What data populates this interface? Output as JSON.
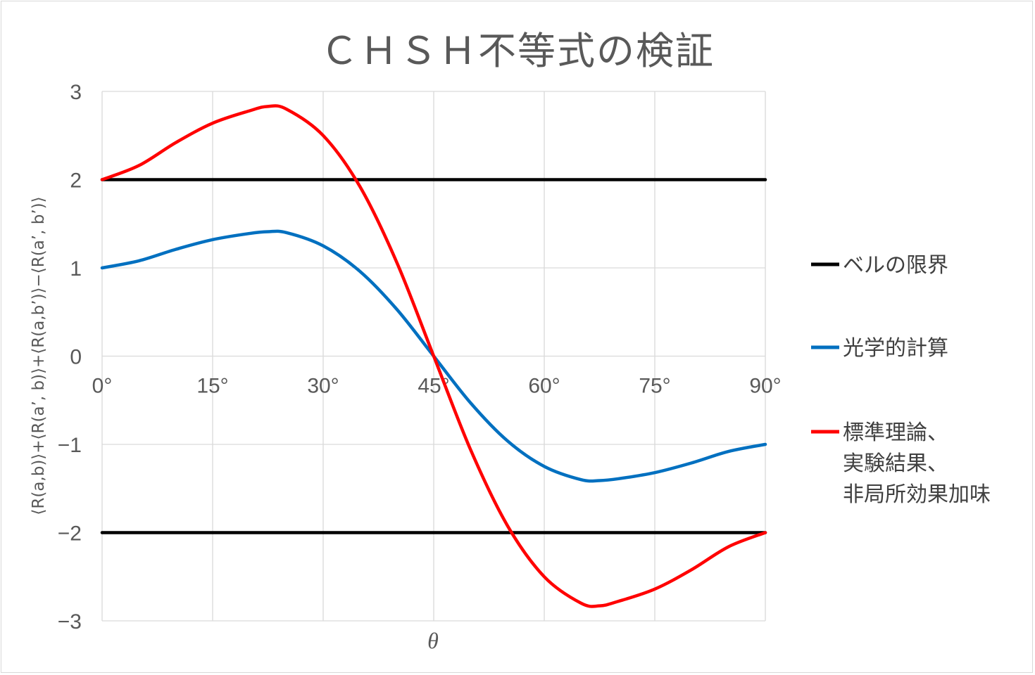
{
  "chart_data": {
    "type": "line",
    "title": "ＣＨＳＨ不等式の検証",
    "xlabel": "θ",
    "ylabel": "⟨R(a,b)⟩+⟨R(a’, b)⟩+⟨R(a,b’)⟩−⟨R(a’, b’)⟩",
    "xlim": [
      0,
      90
    ],
    "ylim": [
      -3,
      3
    ],
    "x_ticks": [
      0,
      15,
      30,
      45,
      60,
      75,
      90
    ],
    "x_tick_labels": [
      "0°",
      "15°",
      "30°",
      "45°",
      "60°",
      "75°",
      "90°"
    ],
    "y_ticks": [
      3,
      2,
      1,
      0,
      -1,
      -2,
      -3
    ],
    "y_tick_labels": [
      "3",
      "2",
      "1",
      "0",
      "−1",
      "−2",
      "−3"
    ],
    "grid": true,
    "legend_position": "right",
    "x": [
      0,
      5,
      10,
      15,
      20,
      22.5,
      25,
      30,
      35,
      40,
      45,
      50,
      55,
      60,
      65,
      67.5,
      70,
      75,
      80,
      85,
      90
    ],
    "series": [
      {
        "name": "ベルの限界",
        "color": "#000000",
        "style": "line",
        "values": [
          2,
          2,
          2,
          2,
          2,
          2,
          2,
          2,
          2,
          2,
          2,
          2,
          2,
          2,
          2,
          2,
          2,
          2,
          2,
          2,
          2
        ]
      },
      {
        "name": "",
        "color": "#000000",
        "style": "line",
        "values": [
          -2,
          -2,
          -2,
          -2,
          -2,
          -2,
          -2,
          -2,
          -2,
          -2,
          -2,
          -2,
          -2,
          -2,
          -2,
          -2,
          -2,
          -2,
          -2,
          -2,
          -2
        ]
      },
      {
        "name": "光学的計算",
        "color": "#0070c0",
        "style": "smooth",
        "values": [
          1.0,
          1.08,
          1.21,
          1.32,
          1.39,
          1.41,
          1.4,
          1.25,
          0.96,
          0.53,
          0.0,
          -0.53,
          -0.96,
          -1.25,
          -1.4,
          -1.41,
          -1.39,
          -1.32,
          -1.21,
          -1.08,
          -1.0
        ]
      },
      {
        "name": "標準理論、\n実験結果、\n非局所効果加味",
        "color": "#ff0000",
        "style": "smooth",
        "values": [
          2.0,
          2.16,
          2.42,
          2.64,
          2.78,
          2.83,
          2.8,
          2.5,
          1.92,
          1.06,
          0.0,
          -1.06,
          -1.92,
          -2.5,
          -2.8,
          -2.83,
          -2.78,
          -2.64,
          -2.42,
          -2.16,
          -2.0
        ]
      }
    ]
  }
}
